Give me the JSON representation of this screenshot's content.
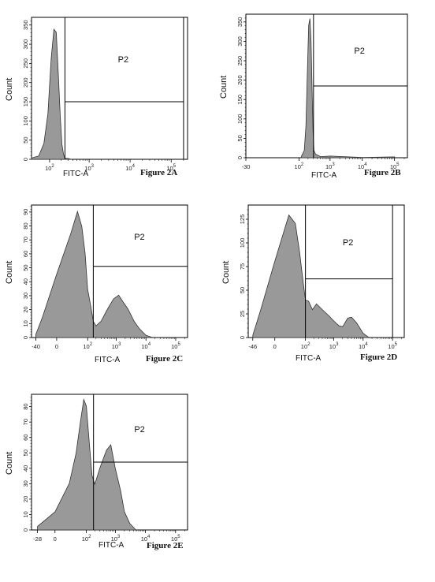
{
  "colors": {
    "fill": "#999999",
    "line": "#000000",
    "background": "#ffffff"
  },
  "panels": [
    {
      "id": "A",
      "caption": "Figure 2A",
      "xlabel": "FITC-A",
      "ylabel": "Count",
      "gate_label": "P2",
      "chart_data": {
        "type": "area",
        "x_scale": "log",
        "yticks": [
          0,
          50,
          100,
          150,
          200,
          250,
          300,
          350
        ],
        "xticks": [
          {
            "v": 100,
            "t": "10",
            "s": "2"
          },
          {
            "v": 1000,
            "t": "10",
            "s": "3"
          },
          {
            "v": 10000,
            "t": "10",
            "s": "4"
          },
          {
            "v": 100000,
            "t": "10",
            "s": "5"
          }
        ],
        "xlim": [
          30,
          250000
        ],
        "ylim": [
          0,
          370
        ],
        "gate": {
          "x_low": 250,
          "x_high": 200000,
          "y": 150
        },
        "x": [
          30,
          50,
          70,
          90,
          110,
          130,
          150,
          170,
          190,
          210,
          230,
          250,
          300,
          400
        ],
        "y": [
          2,
          10,
          40,
          120,
          260,
          340,
          330,
          220,
          110,
          40,
          12,
          4,
          1,
          0
        ]
      }
    },
    {
      "id": "B",
      "caption": "Figure 2B",
      "xlabel": "FITC-A",
      "ylabel": "Count",
      "gate_label": "P2",
      "chart_data": {
        "type": "area",
        "x_scale": "log",
        "yticks": [
          0,
          50,
          100,
          150,
          200,
          250,
          300,
          350
        ],
        "yticks_extra": [
          {
            "v": 350,
            "t": "350"
          }
        ],
        "xticks": [
          {
            "v": -30,
            "t": "-30"
          },
          {
            "v": 100,
            "t": "10",
            "s": "2"
          },
          {
            "v": 1000,
            "t": "10",
            "s": "3"
          },
          {
            "v": 10000,
            "t": "10",
            "s": "4"
          },
          {
            "v": 100000,
            "t": "10",
            "s": "5"
          }
        ],
        "xlim": [
          -30,
          250000
        ],
        "ylim": [
          0,
          370
        ],
        "gate": {
          "x_low": 300,
          "x_high": 250000,
          "y": 185
        },
        "x": [
          120,
          150,
          170,
          190,
          210,
          230,
          250,
          270,
          290,
          310,
          350,
          500,
          1000,
          10000,
          100000
        ],
        "y": [
          2,
          20,
          80,
          220,
          340,
          360,
          300,
          180,
          70,
          20,
          8,
          4,
          3,
          2,
          1
        ]
      }
    },
    {
      "id": "C",
      "caption": "Figure 2C",
      "xlabel": "FITC-A",
      "ylabel": "Count",
      "gate_label": "P2",
      "chart_data": {
        "type": "area",
        "x_scale": "log",
        "yticks": [
          0,
          10,
          20,
          30,
          40,
          50,
          60,
          70,
          80,
          90
        ],
        "xticks": [
          {
            "v": -40,
            "t": "-40"
          },
          {
            "v": 0,
            "t": "0"
          },
          {
            "v": 100,
            "t": "10",
            "s": "2"
          },
          {
            "v": 1000,
            "t": "10",
            "s": "3"
          },
          {
            "v": 10000,
            "t": "10",
            "s": "4"
          },
          {
            "v": 100000,
            "t": "10",
            "s": "5"
          }
        ],
        "xlim": [
          -60,
          250000
        ],
        "ylim": [
          0,
          95
        ],
        "gate": {
          "x_low": 160,
          "x_high": 250000,
          "y": 51
        },
        "x": [
          -40,
          -20,
          0,
          20,
          40,
          60,
          80,
          100,
          130,
          160,
          200,
          300,
          500,
          800,
          1200,
          1800,
          2500,
          4000,
          6000,
          10000,
          15000
        ],
        "y": [
          2,
          15,
          45,
          75,
          90,
          80,
          60,
          35,
          22,
          12,
          8,
          12,
          20,
          28,
          30,
          25,
          20,
          12,
          6,
          2,
          0
        ]
      }
    },
    {
      "id": "D",
      "caption": "Figure 2D",
      "xlabel": "FITC-A",
      "ylabel": "Count",
      "gate_label": "P2",
      "chart_data": {
        "type": "area",
        "x_scale": "log",
        "yticks": [
          0,
          25,
          50,
          75,
          100,
          125
        ],
        "xticks": [
          {
            "v": -46,
            "t": "-46"
          },
          {
            "v": 0,
            "t": "0"
          },
          {
            "v": 100,
            "t": "10",
            "s": "2"
          },
          {
            "v": 1000,
            "t": "10",
            "s": "3"
          },
          {
            "v": 10000,
            "t": "10",
            "s": "4"
          },
          {
            "v": 100000,
            "t": "10",
            "s": "5"
          }
        ],
        "xlim": [
          -70,
          250000
        ],
        "ylim": [
          0,
          140
        ],
        "gate": {
          "x_low": 100,
          "x_high": 100000,
          "y": 62
        },
        "x": [
          -46,
          -20,
          0,
          20,
          40,
          60,
          80,
          100,
          130,
          180,
          250,
          400,
          700,
          1000,
          1500,
          2000,
          3000,
          4000,
          6000,
          10000,
          15000
        ],
        "y": [
          2,
          30,
          80,
          130,
          120,
          90,
          60,
          40,
          38,
          30,
          35,
          30,
          22,
          18,
          12,
          12,
          20,
          22,
          15,
          5,
          0
        ]
      }
    },
    {
      "id": "E",
      "caption": "Figure 2E",
      "xlabel": "FITC-A",
      "ylabel": "Count",
      "gate_label": "P2",
      "chart_data": {
        "type": "area",
        "x_scale": "log",
        "yticks": [
          0,
          10,
          20,
          30,
          40,
          50,
          60,
          70,
          80
        ],
        "xticks": [
          {
            "v": -28,
            "t": "-28"
          },
          {
            "v": 0,
            "t": "0"
          },
          {
            "v": 100,
            "t": "10",
            "s": "2"
          },
          {
            "v": 1000,
            "t": "10",
            "s": "3"
          },
          {
            "v": 10000,
            "t": "10",
            "s": "4"
          },
          {
            "v": 100000,
            "t": "10",
            "s": "5"
          }
        ],
        "xlim": [
          -50,
          250000
        ],
        "ylim": [
          0,
          88
        ],
        "gate": {
          "x_low": 180,
          "x_high": 250000,
          "y": 44
        },
        "x": [
          -28,
          0,
          20,
          40,
          60,
          80,
          100,
          130,
          160,
          200,
          300,
          500,
          700,
          1000,
          1500,
          2000,
          3000,
          5000
        ],
        "y": [
          2,
          12,
          30,
          50,
          70,
          85,
          80,
          55,
          35,
          30,
          40,
          52,
          55,
          40,
          25,
          12,
          4,
          0
        ]
      }
    }
  ]
}
